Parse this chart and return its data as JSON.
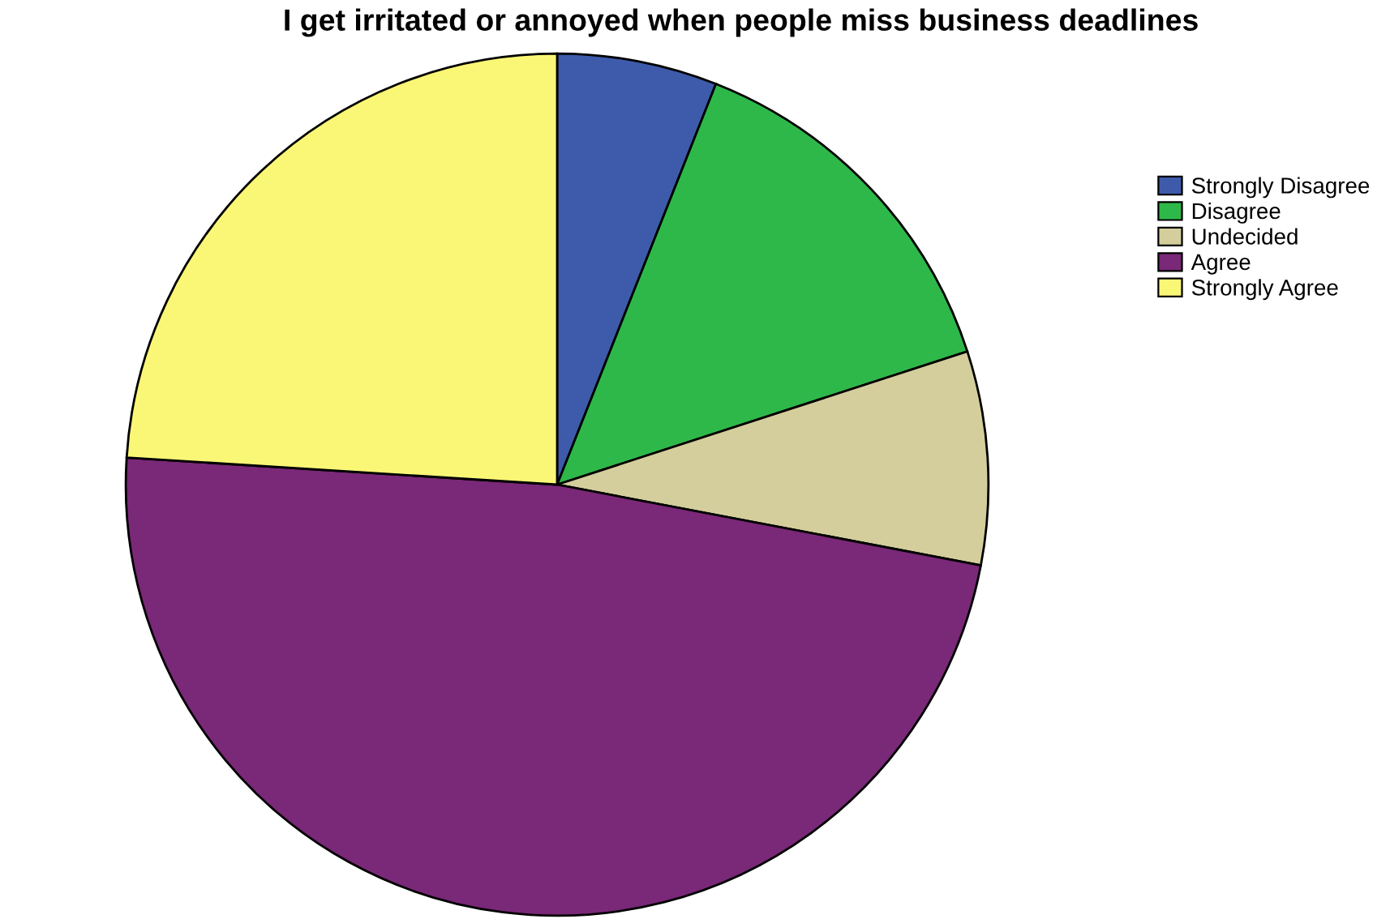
{
  "chart_data": {
    "type": "pie",
    "title": "I get irritated or annoyed when people miss business deadlines",
    "categories": [
      "Strongly Disagree",
      "Disagree",
      "Undecided",
      "Agree",
      "Strongly Agree"
    ],
    "values": [
      6,
      14,
      8,
      48,
      24
    ],
    "colors": [
      "#3e5bab",
      "#2fb84a",
      "#d4ce9c",
      "#7a2878",
      "#fbf776"
    ],
    "legend": "right"
  }
}
